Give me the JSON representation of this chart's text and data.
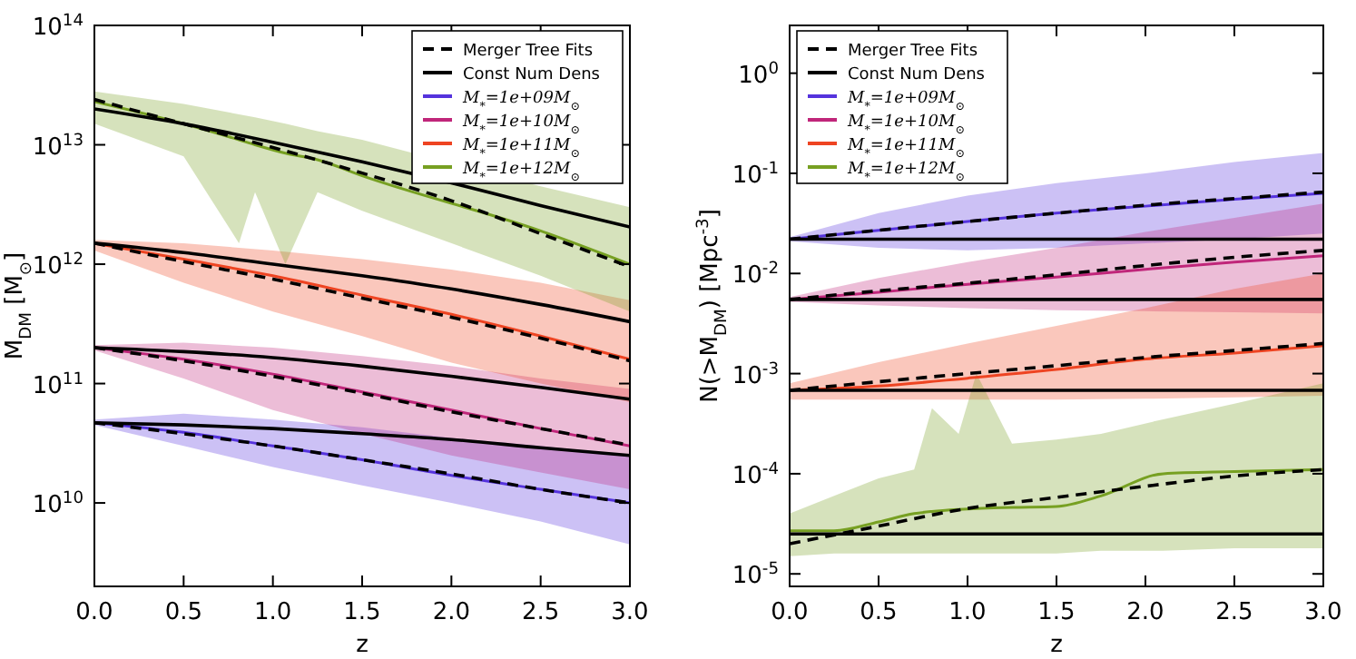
{
  "chart_data": [
    {
      "type": "line",
      "xlabel": "z",
      "ylabel": "M$_{DM}$ [M$_{⊙}$]",
      "log": "y",
      "xlim": [
        0,
        3
      ],
      "ylim": [
        2000000000.0,
        100000000000000.0
      ],
      "xticks": [
        {
          "value": 0,
          "label": "0.0"
        },
        {
          "value": 0.5,
          "label": "0.5"
        },
        {
          "value": 1,
          "label": "1.0"
        },
        {
          "value": 1.5,
          "label": "1.5"
        },
        {
          "value": 2,
          "label": "2.0"
        },
        {
          "value": 2.5,
          "label": "2.5"
        },
        {
          "value": 3,
          "label": "3.0"
        }
      ],
      "yticks": [
        {
          "value": 10000000000.0,
          "label": "10$^{10}$"
        },
        {
          "value": 100000000000.0,
          "label": "10$^{11}$"
        },
        {
          "value": 1000000000000.0,
          "label": "10$^{12}$"
        },
        {
          "value": 10000000000000.0,
          "label": "10$^{13}$"
        },
        {
          "value": 100000000000000.0,
          "label": "10$^{14}$"
        }
      ],
      "grid": false,
      "legend": "top right",
      "x": [
        0,
        0.5,
        1,
        1.5,
        2,
        2.5,
        3
      ],
      "series": [
        {
          "name": "Merger Tree Fits",
          "color": "#000000",
          "line_style": "dashed",
          "values": [
            24000000000000.0,
            15000000000000.0,
            9500000000000.0,
            5800000000000.0,
            3400000000000.0,
            1800000000000.0,
            950000000000.0
          ]
        },
        {
          "name": "Const Num Dens",
          "color": "#000000",
          "line_style": "solid",
          "values": [
            20000000000000.0,
            15000000000000.0,
            10500000000000.0,
            7200000000000.0,
            4800000000000.0,
            3100000000000.0,
            2050000000000.0
          ]
        },
        {
          "name": "M$_{*}$=1e+09M$_{⊙}$",
          "color": "#5533dd",
          "line_style": "solid",
          "values": [
            47000000000.0,
            39000000000.0,
            30000000000.0,
            23000000000.0,
            17000000000.0,
            13000000000.0,
            10000000000.0
          ],
          "lower": [
            45000000000.0,
            30000000000.0,
            20000000000.0,
            14000000000.0,
            10000000000.0,
            7000000000.0,
            4500000000.0
          ],
          "upper": [
            50000000000.0,
            56000000000.0,
            50000000000.0,
            43000000000.0,
            35000000000.0,
            30000000000.0,
            25000000000.0
          ]
        },
        {
          "name": "M$_{*}$=1e+10M$_{⊙}$",
          "color": "#c0267a",
          "line_style": "solid",
          "values": [
            200000000000.0,
            160000000000.0,
            120000000000.0,
            85000000000.0,
            60000000000.0,
            42000000000.0,
            30000000000.0
          ],
          "lower": [
            190000000000.0,
            110000000000.0,
            60000000000.0,
            38000000000.0,
            25000000000.0,
            18000000000.0,
            13000000000.0
          ],
          "upper": [
            210000000000.0,
            220000000000.0,
            200000000000.0,
            170000000000.0,
            140000000000.0,
            110000000000.0,
            90000000000.0
          ]
        },
        {
          "name": "M$_{*}$=1e+11M$_{⊙}$",
          "color": "#ee4422",
          "line_style": "solid",
          "values": [
            1500000000000.0,
            1100000000000.0,
            800000000000.0,
            550000000000.0,
            380000000000.0,
            250000000000.0,
            160000000000.0
          ],
          "lower": [
            1300000000000.0,
            700000000000.0,
            400000000000.0,
            250000000000.0,
            150000000000.0,
            100000000000.0,
            70000000000.0
          ],
          "upper": [
            1600000000000.0,
            1500000000000.0,
            1300000000000.0,
            1100000000000.0,
            900000000000.0,
            700000000000.0,
            500000000000.0
          ]
        },
        {
          "name": "M$_{*}$=1e+12M$_{⊙}$",
          "color": "#77a022",
          "line_style": "solid",
          "x": [
            0,
            0.5,
            0.81,
            0.9,
            1.07,
            1.25,
            1.5,
            2.5,
            3
          ],
          "values": [
            23000000000000.0,
            15000000000000.0,
            11000000000000.0,
            10000000000000.0,
            8500000000000.0,
            7500000000000.0,
            5500000000000.0,
            1900000000000.0,
            1000000000000.0
          ],
          "lower": [
            15000000000000.0,
            8000000000000.0,
            1500000000000.0,
            4000000000000.0,
            1000000000000.0,
            4000000000000.0,
            2800000000000.0,
            800000000000.0,
            400000000000.0
          ],
          "upper": [
            28000000000000.0,
            22000000000000.0,
            18000000000000.0,
            17000000000000.0,
            15000000000000.0,
            13000000000000.0,
            11000000000000.0,
            4500000000000.0,
            3000000000000.0
          ]
        },
        {
          "color": "#000000",
          "line_style": "dashed",
          "values": [
            1500000000000.0,
            1050000000000.0,
            750000000000.0,
            520000000000.0,
            360000000000.0,
            240000000000.0,
            155000000000.0
          ]
        },
        {
          "color": "#000000",
          "line_style": "solid",
          "values": [
            1500000000000.0,
            1250000000000.0,
            1000000000000.0,
            800000000000.0,
            620000000000.0,
            460000000000.0,
            330000000000.0
          ]
        },
        {
          "color": "#000000",
          "line_style": "dashed",
          "values": [
            200000000000.0,
            155000000000.0,
            115000000000.0,
            83000000000.0,
            58000000000.0,
            42000000000.0,
            30500000000.0
          ]
        },
        {
          "color": "#000000",
          "line_style": "solid",
          "values": [
            200000000000.0,
            185000000000.0,
            165000000000.0,
            140000000000.0,
            115000000000.0,
            93000000000.0,
            74000000000.0
          ]
        },
        {
          "color": "#000000",
          "line_style": "dashed",
          "values": [
            47000000000.0,
            38000000000.0,
            30000000000.0,
            23000000000.0,
            17500000000.0,
            13000000000.0,
            10000000000.0
          ]
        },
        {
          "color": "#000000",
          "line_style": "solid",
          "values": [
            47000000000.0,
            45000000000.0,
            42000000000.0,
            38000000000.0,
            34000000000.0,
            29000000000.0,
            25000000000.0
          ]
        }
      ]
    },
    {
      "type": "line",
      "xlabel": "z",
      "ylabel": "N(>M$_{DM}$) [Mpc$^{-3}$]",
      "log": "y",
      "xlim": [
        0,
        3
      ],
      "ylim": [
        7.5e-06,
        3
      ],
      "xticks": [
        {
          "value": 0,
          "label": "0.0"
        },
        {
          "value": 0.5,
          "label": "0.5"
        },
        {
          "value": 1,
          "label": "1.0"
        },
        {
          "value": 1.5,
          "label": "1.5"
        },
        {
          "value": 2,
          "label": "2.0"
        },
        {
          "value": 2.5,
          "label": "2.5"
        },
        {
          "value": 3,
          "label": "3.0"
        }
      ],
      "yticks": [
        {
          "value": 1e-05,
          "label": "10$^{-5}$"
        },
        {
          "value": 0.0001,
          "label": "10$^{-4}$"
        },
        {
          "value": 0.001,
          "label": "10$^{-3}$"
        },
        {
          "value": 0.01,
          "label": "10$^{-2}$"
        },
        {
          "value": 0.1,
          "label": "10$^{-1}$"
        },
        {
          "value": 1,
          "label": "10$^{0}$"
        }
      ],
      "grid": false,
      "legend": "top left",
      "x": [
        0,
        0.5,
        1,
        1.5,
        2,
        2.5,
        3
      ],
      "series": [
        {
          "name": "Merger Tree Fits",
          "color": "#000000",
          "line_style": "dashed",
          "values": [
            0.022,
            0.027,
            0.033,
            0.04,
            0.048,
            0.056,
            0.065
          ]
        },
        {
          "name": "Const Num Dens",
          "color": "#000000",
          "line_style": "solid",
          "values": [
            0.022,
            0.022,
            0.022,
            0.022,
            0.022,
            0.022,
            0.022
          ]
        },
        {
          "name": "M$_{*}$=1e+09M$_{⊙}$",
          "color": "#5533dd",
          "line_style": "solid",
          "values": [
            0.022,
            0.027,
            0.033,
            0.04,
            0.047,
            0.055,
            0.063
          ],
          "lower": [
            0.021,
            0.018,
            0.017,
            0.018,
            0.02,
            0.022,
            0.025
          ],
          "upper": [
            0.023,
            0.04,
            0.06,
            0.08,
            0.1,
            0.13,
            0.16
          ]
        },
        {
          "name": "M$_{*}$=1e+10M$_{⊙}$",
          "color": "#c0267a",
          "line_style": "solid",
          "values": [
            0.0055,
            0.0065,
            0.0078,
            0.0092,
            0.011,
            0.013,
            0.015
          ],
          "lower": [
            0.0052,
            0.0048,
            0.0045,
            0.0043,
            0.0042,
            0.0041,
            0.004
          ],
          "upper": [
            0.0058,
            0.009,
            0.013,
            0.018,
            0.026,
            0.036,
            0.05
          ]
        },
        {
          "name": "M$_{*}$=1e+11M$_{⊙}$",
          "color": "#ee4422",
          "line_style": "solid",
          "values": [
            0.00068,
            0.00075,
            0.0009,
            0.0011,
            0.0014,
            0.0016,
            0.0019
          ],
          "lower": [
            0.00055,
            0.00055,
            0.00055,
            0.00055,
            0.00056,
            0.00058,
            0.0006
          ],
          "upper": [
            0.0008,
            0.0013,
            0.002,
            0.003,
            0.0045,
            0.007,
            0.01
          ]
        },
        {
          "name": "M$_{*}$=1e+12M$_{⊙}$",
          "color": "#77a022",
          "line_style": "solid",
          "x": [
            0,
            0.25,
            0.5,
            0.7,
            0.8,
            0.95,
            1.05,
            1.25,
            1.5,
            1.75,
            2.1,
            2.5,
            3
          ],
          "values": [
            2.7e-05,
            2.7e-05,
            3.3e-05,
            4e-05,
            4.2e-05,
            4.4e-05,
            4.5e-05,
            4.6e-05,
            4.7e-05,
            6e-05,
            0.0001,
            0.000105,
            0.00011
          ],
          "lower": [
            1.5e-05,
            1.6e-05,
            1.6e-05,
            1.6e-05,
            1.6e-05,
            1.6e-05,
            1.6e-05,
            1.6e-05,
            1.6e-05,
            1.7e-05,
            1.7e-05,
            1.8e-05,
            1.8e-05
          ],
          "upper": [
            4e-05,
            6e-05,
            9e-05,
            0.00011,
            0.00045,
            0.00025,
            0.001,
            0.0002,
            0.00022,
            0.00025,
            0.00035,
            0.0005,
            0.0008
          ]
        },
        {
          "color": "#000000",
          "line_style": "dashed",
          "values": [
            0.0055,
            0.0067,
            0.008,
            0.0097,
            0.012,
            0.0145,
            0.017
          ]
        },
        {
          "color": "#000000",
          "line_style": "solid",
          "values": [
            0.0055,
            0.0055,
            0.0055,
            0.0055,
            0.0055,
            0.0055,
            0.0055
          ]
        },
        {
          "color": "#000000",
          "line_style": "dashed",
          "values": [
            0.00068,
            0.00083,
            0.001,
            0.0012,
            0.00145,
            0.0017,
            0.002
          ]
        },
        {
          "color": "#000000",
          "line_style": "solid",
          "values": [
            0.00068,
            0.00068,
            0.00068,
            0.00068,
            0.00068,
            0.00068,
            0.00068
          ]
        },
        {
          "color": "#000000",
          "line_style": "dashed",
          "values": [
            2e-05,
            3e-05,
            4.5e-05,
            5.8e-05,
            7.5e-05,
            9.5e-05,
            0.00011
          ]
        },
        {
          "color": "#000000",
          "line_style": "solid",
          "values": [
            2.5e-05,
            2.5e-05,
            2.5e-05,
            2.5e-05,
            2.5e-05,
            2.5e-05,
            2.5e-05
          ]
        }
      ]
    }
  ]
}
